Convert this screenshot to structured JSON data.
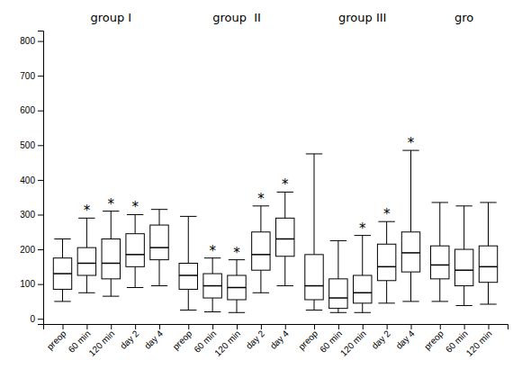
{
  "chart_data": {
    "type": "box",
    "ylim": [
      -15,
      830
    ],
    "yticks": [
      0,
      100,
      200,
      300,
      400,
      500,
      600,
      700,
      800
    ],
    "grid": false,
    "groups": [
      {
        "name": "group I",
        "categories": [
          "preop",
          "60 min",
          "120 min",
          "day 2",
          "day 4"
        ],
        "boxes": [
          {
            "median": 130,
            "q1": 85,
            "q3": 175,
            "low": 50,
            "high": 230
          },
          {
            "median": 160,
            "q1": 125,
            "q3": 205,
            "low": 75,
            "high": 290
          },
          {
            "median": 160,
            "q1": 115,
            "q3": 230,
            "low": 65,
            "high": 310
          },
          {
            "median": 185,
            "q1": 150,
            "q3": 245,
            "low": 90,
            "high": 300
          },
          {
            "median": 205,
            "q1": 170,
            "q3": 270,
            "low": 95,
            "high": 315
          }
        ],
        "annotations": [
          null,
          "*",
          "*",
          "*",
          null
        ]
      },
      {
        "name": "group  II",
        "categories": [
          "preop",
          "60 min",
          "120 min",
          "day 2",
          "day 4"
        ],
        "boxes": [
          {
            "median": 125,
            "q1": 85,
            "q3": 160,
            "low": 25,
            "high": 295
          },
          {
            "median": 95,
            "q1": 60,
            "q3": 130,
            "low": 20,
            "high": 175
          },
          {
            "median": 90,
            "q1": 55,
            "q3": 125,
            "low": 18,
            "high": 170
          },
          {
            "median": 185,
            "q1": 140,
            "q3": 250,
            "low": 75,
            "high": 325
          },
          {
            "median": 230,
            "q1": 180,
            "q3": 290,
            "low": 95,
            "high": 365
          }
        ],
        "annotations": [
          null,
          "*",
          "*",
          "*",
          "*"
        ]
      },
      {
        "name": "group III",
        "categories": [
          "preop",
          "60 min",
          "120 min",
          "day 2",
          "day 4"
        ],
        "boxes": [
          {
            "median": 95,
            "q1": 55,
            "q3": 185,
            "low": 25,
            "high": 475
          },
          {
            "median": 60,
            "q1": 30,
            "q3": 115,
            "low": 18,
            "high": 225
          },
          {
            "median": 75,
            "q1": 45,
            "q3": 125,
            "low": 18,
            "high": 240
          },
          {
            "median": 150,
            "q1": 110,
            "q3": 215,
            "low": 45,
            "high": 280
          },
          {
            "median": 190,
            "q1": 135,
            "q3": 250,
            "low": 50,
            "high": 485
          }
        ],
        "annotations": [
          null,
          null,
          "*",
          "*",
          "*"
        ]
      },
      {
        "name": "gro",
        "categories": [
          "preop",
          "60 min",
          "120 min"
        ],
        "boxes": [
          {
            "median": 155,
            "q1": 115,
            "q3": 210,
            "low": 50,
            "high": 335
          },
          {
            "median": 140,
            "q1": 95,
            "q3": 200,
            "low": 38,
            "high": 325
          },
          {
            "median": 150,
            "q1": 105,
            "q3": 210,
            "low": 42,
            "high": 335
          }
        ],
        "annotations": [
          null,
          null,
          null
        ]
      }
    ]
  }
}
